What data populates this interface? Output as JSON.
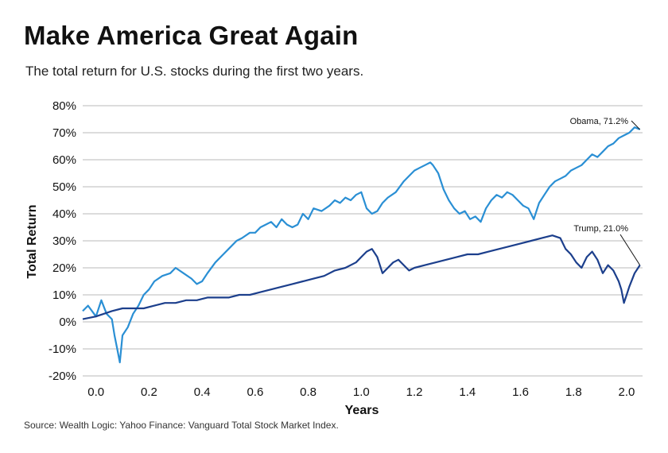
{
  "title": "Make America Great Again",
  "subtitle": "The total return for U.S. stocks during the first two years.",
  "source": "Source: Wealth Logic: Yahoo Finance: Vanguard Total Stock Market Index.",
  "colors": {
    "obama": "#2a8fd4",
    "trump": "#1c3f8c",
    "grid": "#c8c8c8",
    "text": "#111111"
  },
  "chart_data": {
    "type": "line",
    "xlabel": "Years",
    "ylabel": "Total Return",
    "xlim": [
      -0.05,
      2.06
    ],
    "ylim": [
      -20,
      80
    ],
    "x_ticks": [
      0.0,
      0.2,
      0.4,
      0.6,
      0.8,
      1.0,
      1.2,
      1.4,
      1.6,
      1.8,
      2.0
    ],
    "x_tick_labels": [
      "0.0",
      "0.2",
      "0.4",
      "0.6",
      "0.8",
      "1.0",
      "1.2",
      "1.4",
      "1.6",
      "1.8",
      "2.0"
    ],
    "y_ticks": [
      -20,
      -10,
      0,
      10,
      20,
      30,
      40,
      50,
      60,
      70,
      80
    ],
    "y_tick_labels": [
      "-20%",
      "-10%",
      "0%",
      "10%",
      "20%",
      "30%",
      "40%",
      "50%",
      "60%",
      "70%",
      "80%"
    ],
    "grid": "horizontal",
    "series": [
      {
        "key": "obama",
        "x": [
          -0.05,
          -0.03,
          0.0,
          0.02,
          0.04,
          0.06,
          0.07,
          0.08,
          0.09,
          0.1,
          0.12,
          0.14,
          0.16,
          0.18,
          0.2,
          0.22,
          0.25,
          0.28,
          0.3,
          0.33,
          0.36,
          0.38,
          0.4,
          0.42,
          0.45,
          0.48,
          0.5,
          0.53,
          0.55,
          0.58,
          0.6,
          0.62,
          0.64,
          0.66,
          0.68,
          0.7,
          0.72,
          0.74,
          0.76,
          0.78,
          0.8,
          0.82,
          0.85,
          0.88,
          0.9,
          0.92,
          0.94,
          0.96,
          0.98,
          1.0,
          1.02,
          1.04,
          1.06,
          1.08,
          1.1,
          1.13,
          1.16,
          1.18,
          1.2,
          1.22,
          1.24,
          1.26,
          1.27,
          1.29,
          1.31,
          1.33,
          1.35,
          1.37,
          1.39,
          1.41,
          1.43,
          1.45,
          1.47,
          1.49,
          1.51,
          1.53,
          1.55,
          1.57,
          1.59,
          1.61,
          1.63,
          1.65,
          1.67,
          1.69,
          1.71,
          1.73,
          1.75,
          1.77,
          1.79,
          1.81,
          1.83,
          1.85,
          1.87,
          1.89,
          1.91,
          1.93,
          1.95,
          1.97,
          1.99,
          2.01,
          2.03,
          2.05
        ],
        "y": [
          4,
          6,
          2,
          8,
          3,
          1,
          -5,
          -10,
          -15,
          -5,
          -2,
          3,
          6,
          10,
          12,
          15,
          17,
          18,
          20,
          18,
          16,
          14,
          15,
          18,
          22,
          25,
          27,
          30,
          31,
          33,
          33,
          35,
          36,
          37,
          35,
          38,
          36,
          35,
          36,
          40,
          38,
          42,
          41,
          43,
          45,
          44,
          46,
          45,
          47,
          48,
          42,
          40,
          41,
          44,
          46,
          48,
          52,
          54,
          56,
          57,
          58,
          59,
          58,
          55,
          49,
          45,
          42,
          40,
          41,
          38,
          39,
          37,
          42,
          45,
          47,
          46,
          48,
          47,
          45,
          43,
          42,
          38,
          44,
          47,
          50,
          52,
          53,
          54,
          56,
          57,
          58,
          60,
          62,
          61,
          63,
          65,
          66,
          68,
          69,
          70,
          72,
          71.2
        ]
      },
      {
        "key": "trump",
        "x": [
          -0.05,
          0.0,
          0.03,
          0.06,
          0.1,
          0.14,
          0.18,
          0.22,
          0.26,
          0.3,
          0.34,
          0.38,
          0.42,
          0.46,
          0.5,
          0.54,
          0.58,
          0.62,
          0.66,
          0.7,
          0.74,
          0.78,
          0.82,
          0.86,
          0.9,
          0.94,
          0.98,
          1.0,
          1.02,
          1.04,
          1.06,
          1.08,
          1.1,
          1.12,
          1.14,
          1.16,
          1.18,
          1.2,
          1.24,
          1.28,
          1.32,
          1.36,
          1.4,
          1.44,
          1.48,
          1.52,
          1.56,
          1.6,
          1.64,
          1.68,
          1.72,
          1.75,
          1.77,
          1.79,
          1.81,
          1.83,
          1.85,
          1.87,
          1.89,
          1.91,
          1.93,
          1.95,
          1.97,
          1.98,
          1.99,
          2.0,
          2.01,
          2.03,
          2.05
        ],
        "y": [
          1,
          2,
          3,
          4,
          5,
          5,
          5,
          6,
          7,
          7,
          8,
          8,
          9,
          9,
          9,
          10,
          10,
          11,
          12,
          13,
          14,
          15,
          16,
          17,
          19,
          20,
          22,
          24,
          26,
          27,
          24,
          18,
          20,
          22,
          23,
          21,
          19,
          20,
          21,
          22,
          23,
          24,
          25,
          25,
          26,
          27,
          28,
          29,
          30,
          31,
          32,
          31,
          27,
          25,
          22,
          20,
          24,
          26,
          23,
          18,
          21,
          19,
          15,
          12,
          7,
          10,
          13,
          18,
          21.0
        ]
      }
    ],
    "annotations": [
      {
        "text": "Obama, 71.2%",
        "series": "obama",
        "x": 2.05,
        "y": 71.2
      },
      {
        "text": "Trump, 21.0%",
        "series": "trump",
        "x": 2.05,
        "y": 21.0
      }
    ]
  }
}
